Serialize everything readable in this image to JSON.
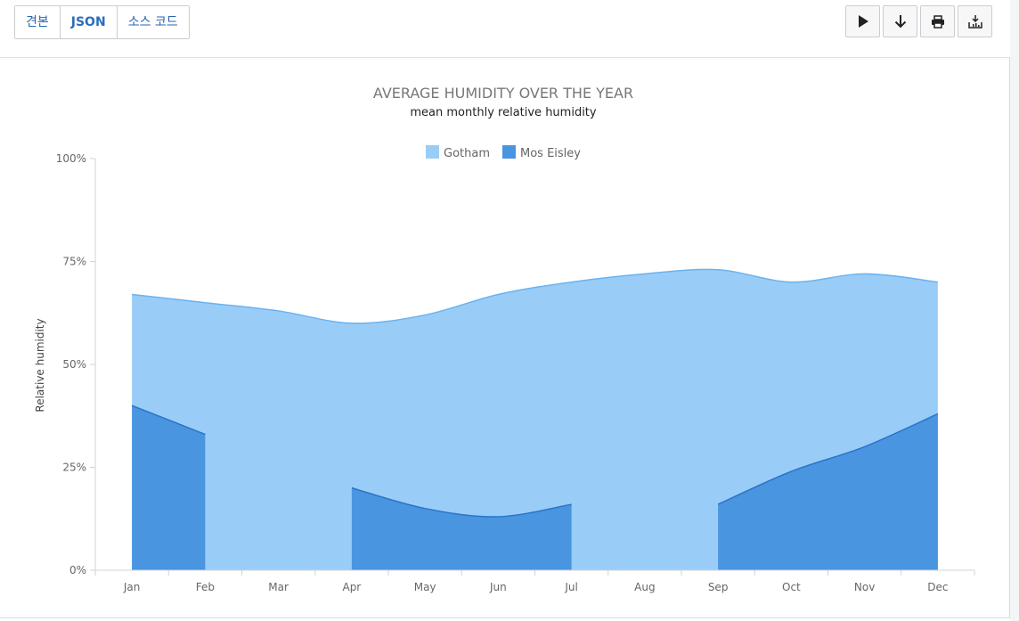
{
  "tabs": [
    {
      "label": "견본",
      "active": false
    },
    {
      "label": "JSON",
      "active": true
    },
    {
      "label": "소스 코드",
      "active": false
    }
  ],
  "toolbar_actions": [
    {
      "icon": "play-icon",
      "title": "Run"
    },
    {
      "icon": "download-arrow-icon",
      "title": "Download"
    },
    {
      "icon": "print-icon",
      "title": "Print"
    },
    {
      "icon": "export-chart-icon",
      "title": "Export"
    }
  ],
  "colors": {
    "gotham": "#99cdf7",
    "gotham_line": "#6ab3ef",
    "mos_eisley": "#4a95e0",
    "mos_eisley_line": "#2b74c9",
    "axis": "#cfd3d8",
    "tick_text": "#666666",
    "title": "#777777",
    "subtitle": "#222222"
  },
  "chart_data": {
    "type": "area",
    "title": "AVERAGE HUMIDITY OVER THE YEAR",
    "subtitle": "mean monthly relative humidity",
    "xlabel": "",
    "ylabel": "Relative humidity",
    "ylim": [
      0,
      100
    ],
    "yticks": [
      0,
      25,
      50,
      75,
      100
    ],
    "ytick_labels": [
      "0%",
      "25%",
      "50%",
      "75%",
      "100%"
    ],
    "categories": [
      "Jan",
      "Feb",
      "Mar",
      "Apr",
      "May",
      "Jun",
      "Jul",
      "Aug",
      "Sep",
      "Oct",
      "Nov",
      "Dec"
    ],
    "legend": [
      "Gotham",
      "Mos Eisley"
    ],
    "legend_position": "top-center",
    "series": [
      {
        "name": "Gotham",
        "values": [
          67,
          65,
          63,
          60,
          62,
          67,
          70,
          72,
          73,
          70,
          72,
          70
        ]
      },
      {
        "name": "Mos Eisley",
        "values": [
          40,
          33,
          null,
          20,
          15,
          13,
          16,
          null,
          16,
          24,
          30,
          38
        ]
      }
    ]
  }
}
